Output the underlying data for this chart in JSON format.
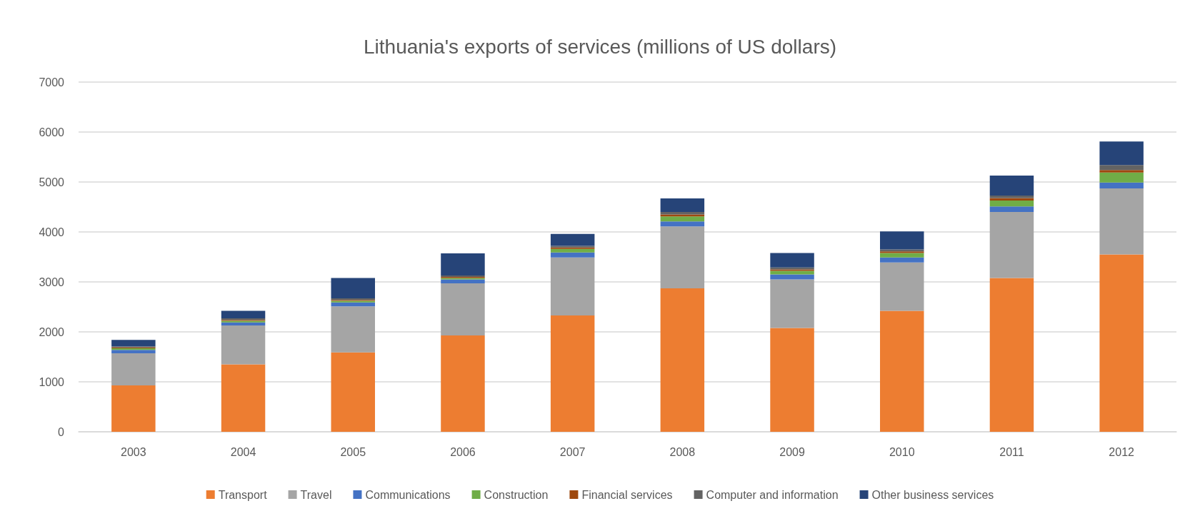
{
  "chart_data": {
    "type": "bar",
    "title": "Lithuania's exports of services (millions of US dollars)",
    "categories": [
      "2003",
      "2004",
      "2005",
      "2006",
      "2007",
      "2008",
      "2009",
      "2010",
      "2011",
      "2012"
    ],
    "stacked": true,
    "series": [
      {
        "name": "Transport",
        "color": "#ed7d31",
        "values": [
          930,
          1350,
          1590,
          1930,
          2330,
          2870,
          2080,
          2420,
          3080,
          3550
        ]
      },
      {
        "name": "Travel",
        "color": "#a5a5a5",
        "values": [
          640,
          780,
          920,
          1040,
          1160,
          1240,
          970,
          970,
          1320,
          1320
        ]
      },
      {
        "name": "Communications",
        "color": "#4472c4",
        "values": [
          70,
          60,
          80,
          80,
          100,
          100,
          100,
          100,
          110,
          120
        ]
      },
      {
        "name": "Construction",
        "color": "#70ad47",
        "values": [
          30,
          30,
          30,
          30,
          70,
          100,
          70,
          90,
          120,
          200
        ]
      },
      {
        "name": "Financial services",
        "color": "#9e480e",
        "values": [
          20,
          20,
          20,
          20,
          30,
          40,
          30,
          30,
          50,
          50
        ]
      },
      {
        "name": "Computer and information",
        "color": "#636363",
        "values": [
          20,
          30,
          30,
          30,
          30,
          50,
          40,
          40,
          50,
          100
        ]
      },
      {
        "name": "Other business services",
        "color": "#264478",
        "values": [
          130,
          150,
          410,
          440,
          240,
          270,
          290,
          360,
          400,
          470
        ]
      }
    ],
    "ylim": [
      0,
      7000
    ],
    "yticks": [
      0,
      1000,
      2000,
      3000,
      4000,
      5000,
      6000,
      7000
    ],
    "grid": "y",
    "legend": "bottom"
  }
}
